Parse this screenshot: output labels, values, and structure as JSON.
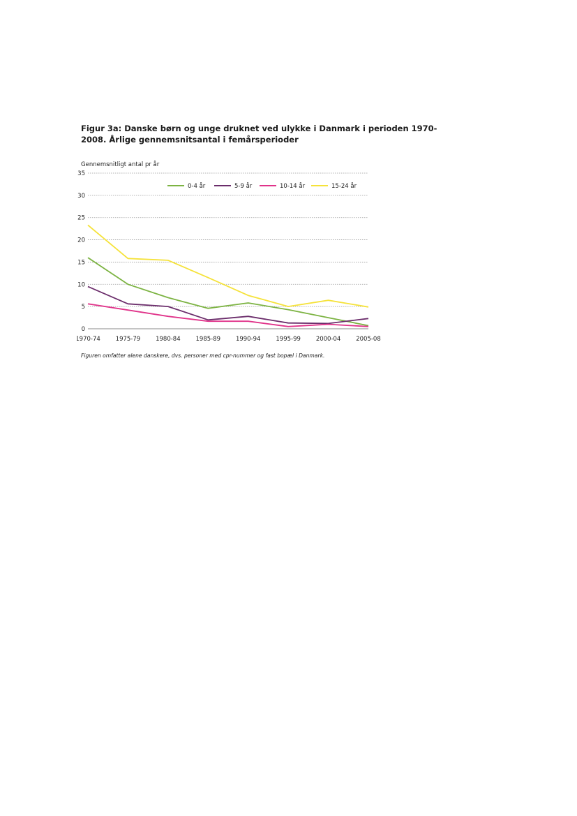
{
  "figure": {
    "title_line1": "Figur 3a: Danske børn og unge druknet ved ulykke i Danmark i perioden 1970-",
    "title_line2": "2008. Årlige gennemsnitsantal i femårsperioder",
    "caption": "Figuren omfatter alene danskere, dvs. personer med cpr-nummer og fast bopæl i Danmark."
  },
  "chart_data": {
    "type": "line",
    "title": "Figur 3a: Danske børn og unge druknet ved ulykke i Danmark i perioden 1970-2008. Årlige gennemsnitsantal i femårsperioder",
    "xlabel": "",
    "ylabel": "Gennemsnitligt antal pr år",
    "ylim": [
      0,
      35
    ],
    "yticks": [
      "0",
      "5",
      "10",
      "15",
      "20",
      "25",
      "30",
      "35"
    ],
    "grid": true,
    "legend_position": "top-right",
    "categories": [
      "1970-74",
      "1975-79",
      "1980-84",
      "1985-89",
      "1990-94",
      "1995-99",
      "2000-04",
      "2005-08"
    ],
    "series": [
      {
        "name": "0-4 år",
        "color": "#7cb342",
        "values": [
          16.0,
          10.0,
          7.0,
          4.6,
          5.8,
          4.3,
          2.5,
          0.7
        ]
      },
      {
        "name": "5-9 år",
        "color": "#6b2d6b",
        "values": [
          9.5,
          5.6,
          5.0,
          2.0,
          2.8,
          1.3,
          1.2,
          2.3
        ]
      },
      {
        "name": "10-14 år",
        "color": "#e0338a",
        "values": [
          5.6,
          4.2,
          2.8,
          1.7,
          1.7,
          0.5,
          1.0,
          0.5
        ]
      },
      {
        "name": "15-24 år",
        "color": "#f5e23a",
        "values": [
          23.3,
          15.8,
          15.4,
          11.5,
          7.5,
          5.0,
          6.4,
          4.9
        ]
      }
    ]
  }
}
